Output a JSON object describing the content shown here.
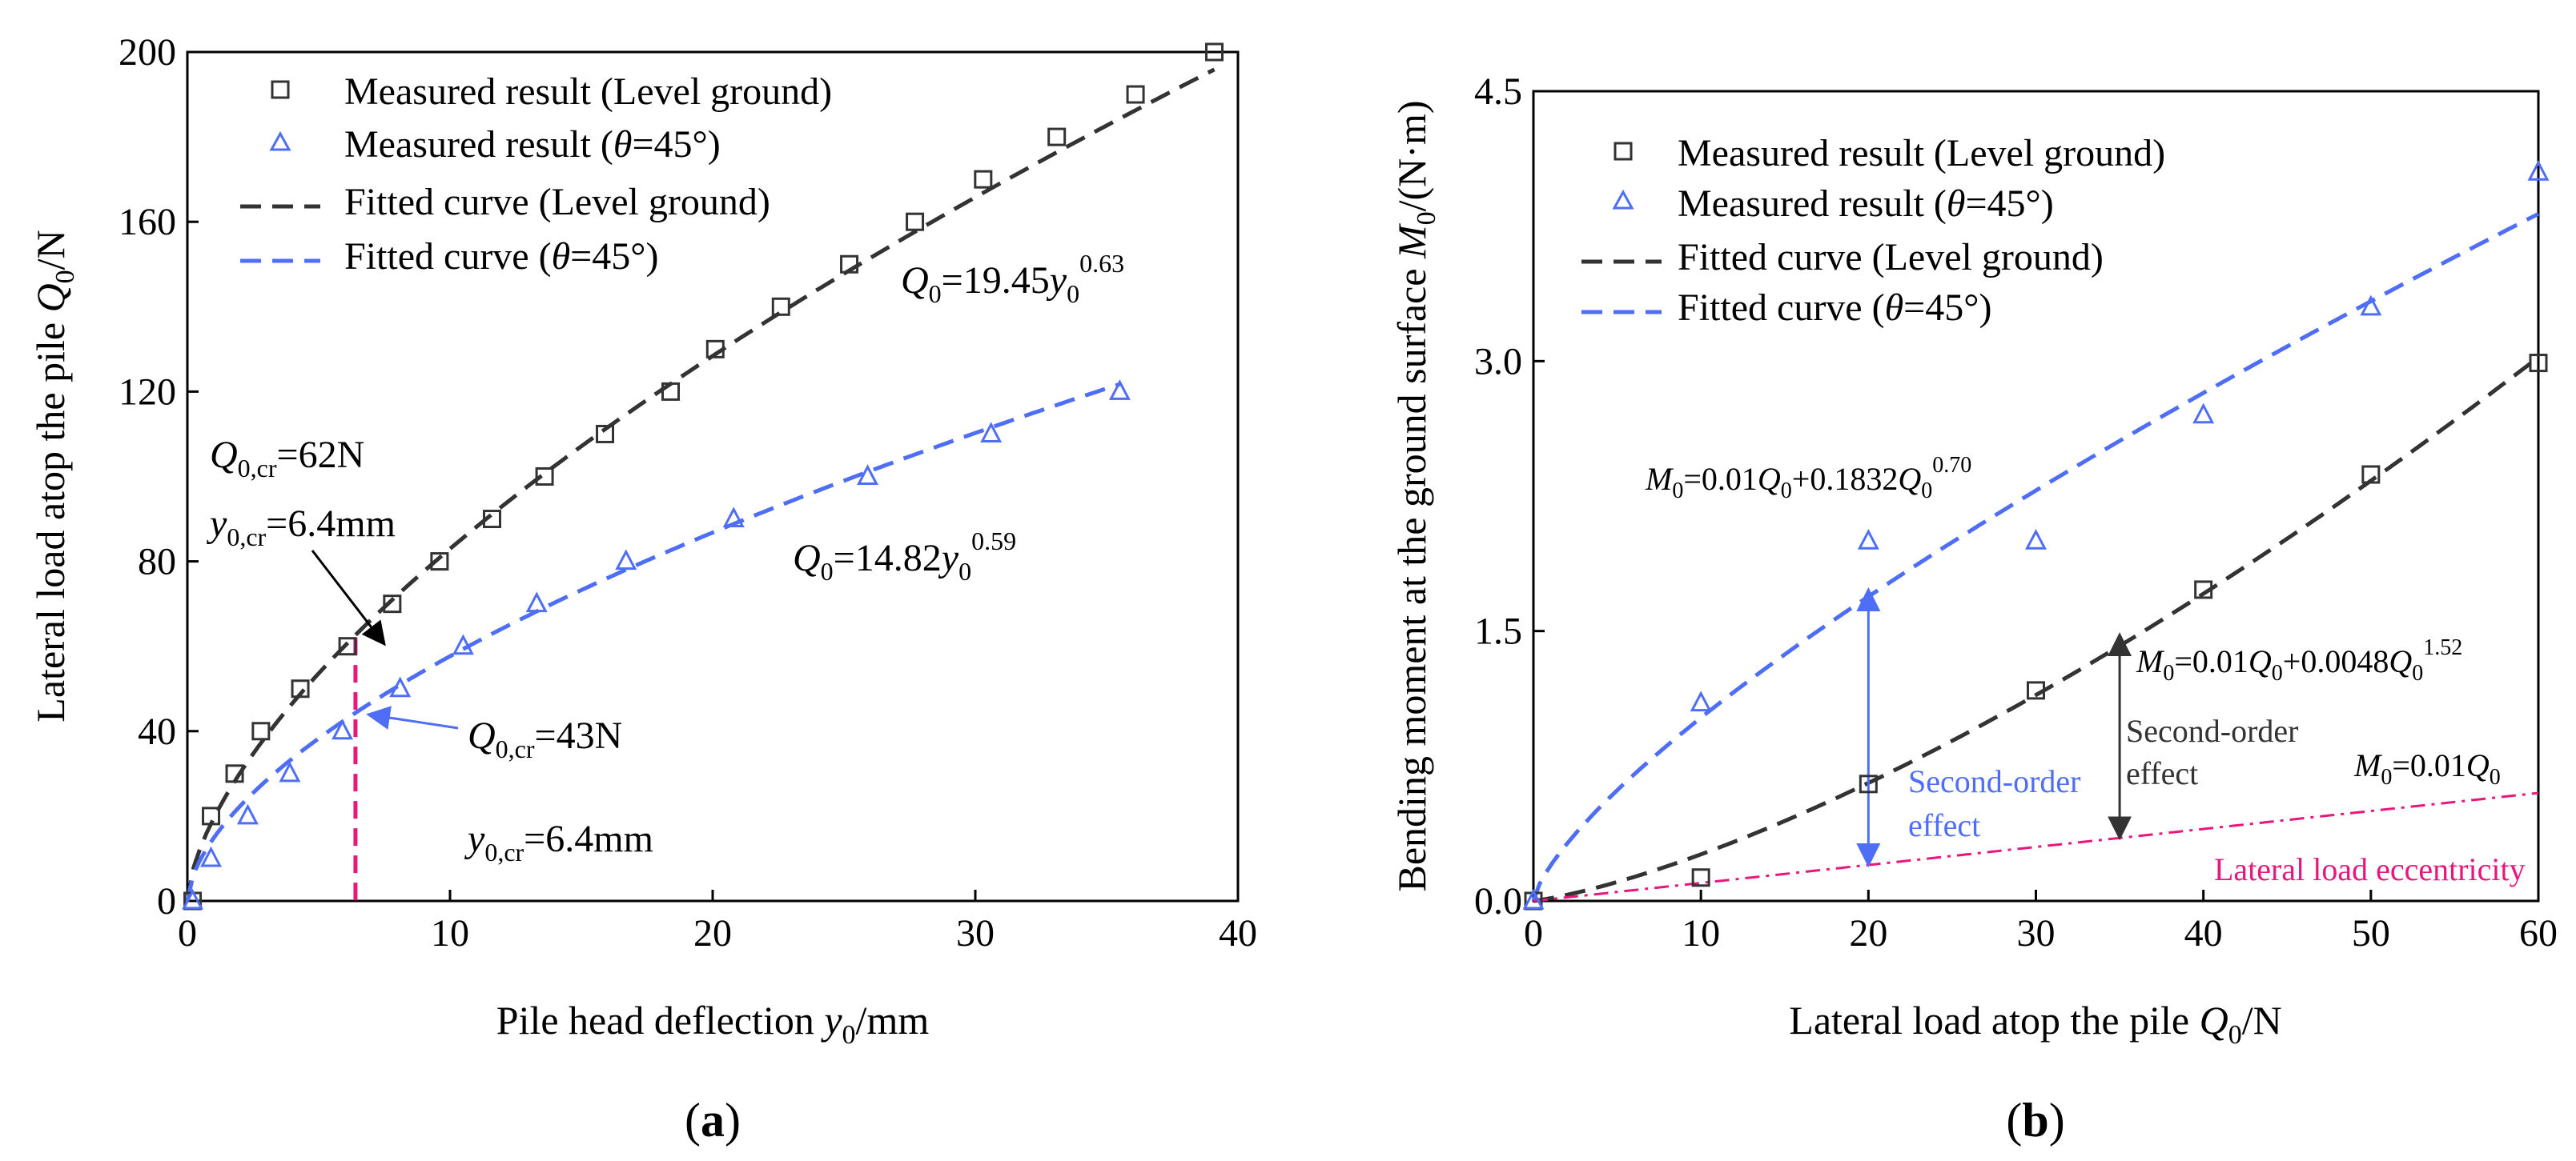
{
  "chart_data": [
    {
      "panel": "(a)",
      "type": "scatter",
      "xlabel": "Pile head deflection y0/mm",
      "ylabel": "Lateral load atop the pile Q0/N",
      "xlim": [
        0,
        40
      ],
      "ylim": [
        0,
        200
      ],
      "xticks": [
        0,
        10,
        20,
        30,
        40
      ],
      "yticks": [
        0,
        40,
        80,
        120,
        160,
        200
      ],
      "legend_position": "top-left",
      "legend": [
        {
          "label": "Measured result (Level ground)",
          "marker": "square",
          "color": "#333333"
        },
        {
          "label": "Measured result (θ=45°)",
          "marker": "triangle",
          "color": "#4f6ef7"
        },
        {
          "label": "Fitted curve (Level ground)",
          "line": "dashed",
          "color": "#333333"
        },
        {
          "label": "Fitted curve (θ=45°)",
          "line": "dashed",
          "color": "#4f6ef7"
        }
      ],
      "series": [
        {
          "name": "Measured result (Level ground)",
          "color": "#333333",
          "marker": "square",
          "x": [
            0.2,
            0.9,
            1.8,
            2.8,
            4.3,
            6.1,
            7.8,
            9.6,
            11.6,
            13.6,
            15.9,
            18.4,
            20.1,
            22.6,
            25.2,
            27.7,
            30.3,
            33.1,
            36.1,
            39.1
          ],
          "y": [
            0,
            20,
            30,
            40,
            50,
            60,
            70,
            80,
            90,
            100,
            110,
            120,
            130,
            140,
            150,
            160,
            170,
            180,
            190,
            200
          ]
        },
        {
          "name": "Measured result (θ=45°)",
          "color": "#4f6ef7",
          "marker": "triangle",
          "x": [
            0.2,
            0.9,
            2.3,
            3.9,
            5.9,
            8.1,
            10.5,
            13.3,
            16.7,
            20.8,
            25.9,
            30.6,
            35.5
          ],
          "y": [
            0,
            10,
            20,
            30,
            40,
            50,
            60,
            70,
            80,
            90,
            100,
            110,
            120
          ]
        },
        {
          "name": "Fitted curve (Level ground)",
          "color": "#333333",
          "line": "dashed",
          "coef": 19.45,
          "exp": 0.63,
          "xmax": 39.1
        },
        {
          "name": "Fitted curve (θ=45°)",
          "color": "#4f6ef7",
          "line": "dashed",
          "coef": 14.82,
          "exp": 0.59,
          "xmax": 35.5
        }
      ],
      "critical_line": {
        "x": 6.4,
        "y_top": 62,
        "color": "#e8177b"
      },
      "annotations": {
        "eq_level": "Q0=19.45y0^0.63",
        "eq_45": "Q0=14.82y0^0.59",
        "level_q_cr_label": "Q0,cr",
        "level_q_cr_value": "=62N",
        "level_y_cr_label": "y0,cr",
        "level_y_cr_value": "=6.4mm",
        "inc_q_cr_label": "Q0,cr",
        "inc_q_cr_value": "=43N",
        "inc_y_cr_label": "y0,cr",
        "inc_y_cr_value": "=6.4mm"
      }
    },
    {
      "panel": "(b)",
      "type": "scatter",
      "xlabel": "Lateral load atop the pile Q0/N",
      "ylabel": "Bending moment at the ground surface M0/(N·m)",
      "xlim": [
        0,
        60
      ],
      "ylim": [
        0,
        4.5
      ],
      "xticks": [
        0,
        10,
        20,
        30,
        40,
        50,
        60
      ],
      "yticks": [
        0.0,
        1.5,
        3.0,
        4.5
      ],
      "legend_position": "top-left",
      "legend": [
        {
          "label": "Measured result (Level ground)",
          "marker": "square",
          "color": "#333333"
        },
        {
          "label": "Measured result (θ=45°)",
          "marker": "triangle",
          "color": "#4f6ef7"
        },
        {
          "label": "Fitted curve (Level ground)",
          "line": "dashed",
          "color": "#333333"
        },
        {
          "label": "Fitted curve (θ=45°)",
          "line": "dashed",
          "color": "#4f6ef7"
        }
      ],
      "series": [
        {
          "name": "Measured result (Level ground)",
          "color": "#333333",
          "marker": "square",
          "x": [
            0,
            10,
            20,
            30,
            40,
            50,
            60
          ],
          "y": [
            0,
            0.13,
            0.65,
            1.17,
            1.73,
            2.37,
            2.99
          ]
        },
        {
          "name": "Measured result (θ=45°)",
          "color": "#4f6ef7",
          "marker": "triangle",
          "x": [
            0,
            10,
            20,
            30,
            40,
            50,
            60
          ],
          "y": [
            0,
            1.1,
            2.0,
            2.0,
            2.7,
            3.3,
            4.05
          ]
        },
        {
          "name": "Fitted curve (Level ground)",
          "color": "#333333",
          "line": "dashed",
          "a": 0.01,
          "coef": 0.0048,
          "exp": 1.52
        },
        {
          "name": "Fitted curve (θ=45°)",
          "color": "#4f6ef7",
          "line": "dashed",
          "a": 0.01,
          "coef": 0.1832,
          "exp": 0.7
        },
        {
          "name": "Lateral load eccentricity",
          "color": "#e8177b",
          "line": "dashdot",
          "a": 0.01
        }
      ],
      "arrows": [
        {
          "x": 20,
          "y_from": 0.2,
          "y_to": 1.73,
          "color": "#4f6ef7"
        },
        {
          "x": 35,
          "y_from": 0.35,
          "y_to": 1.48,
          "color": "#333333"
        }
      ],
      "annotations": {
        "eq_45": "M0=0.01Q0+0.1832Q0^0.70",
        "eq_level": "M0=0.01Q0+0.0048Q0^1.52",
        "eq_ecc": "M0=0.01Q0",
        "second_order_blue_1": "Second-order",
        "second_order_blue_2": "effect",
        "second_order_black_1": "Second-order",
        "second_order_black_2": "effect",
        "ecc_label": "Lateral load eccentricity"
      }
    }
  ]
}
